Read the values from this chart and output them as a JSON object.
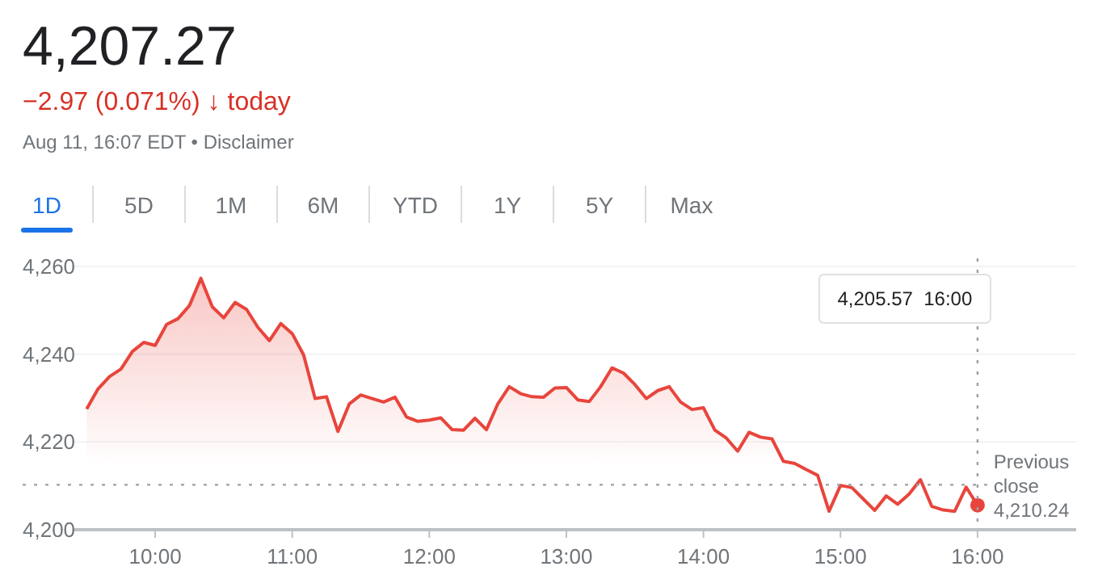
{
  "chart_data": {
    "type": "area",
    "title": "4,207.27",
    "subtitle": "−2.97 (0.071%) ↓ today",
    "annotations": [
      "Aug 11, 16:07 EDT • Disclaimer",
      "1D",
      "5D",
      "1M",
      "6M",
      "YTD",
      "1Y",
      "5Y",
      "Max",
      "4,205.57  16:00"
    ],
    "x": [
      9.5,
      9.5833,
      9.6667,
      9.75,
      9.8333,
      9.9167,
      10,
      10.0833,
      10.1667,
      10.25,
      10.3333,
      10.4167,
      10.5,
      10.5833,
      10.6667,
      10.75,
      10.8333,
      10.9167,
      11,
      11.0833,
      11.1667,
      11.25,
      11.3333,
      11.4167,
      11.5,
      11.5833,
      11.6667,
      11.75,
      11.8333,
      11.9167,
      12,
      12.0833,
      12.1667,
      12.25,
      12.3333,
      12.4167,
      12.5,
      12.5833,
      12.6667,
      12.75,
      12.8333,
      12.9167,
      13,
      13.0833,
      13.1667,
      13.25,
      13.3333,
      13.4167,
      13.5,
      13.5833,
      13.6667,
      13.75,
      13.8333,
      13.9167,
      14,
      14.0833,
      14.1667,
      14.25,
      14.3333,
      14.4167,
      14.5,
      14.5833,
      14.6667,
      14.75,
      14.8333,
      14.9167,
      15,
      15.0833,
      15.1667,
      15.25,
      15.3333,
      15.4167,
      15.5,
      15.5833,
      15.6667,
      15.75,
      15.8333,
      15.9167,
      16
    ],
    "series": [
      {
        "color": "#e8453c",
        "values": [
          4227.5,
          4232.1,
          4234.9,
          4236.6,
          4240.6,
          4242.7,
          4242,
          4246.8,
          4248.1,
          4251.1,
          4257.3,
          4250.8,
          4248.3,
          4251.8,
          4250.2,
          4246.1,
          4243.1,
          4247,
          4244.7,
          4239.8,
          4229.9,
          4230.3,
          4222.4,
          4228.7,
          4230.7,
          4229.9,
          4229.1,
          4230.2,
          4225.7,
          4224.7,
          4225,
          4225.5,
          4222.8,
          4222.7,
          4225.4,
          4222.8,
          4228.7,
          4232.6,
          4231,
          4230.3,
          4230.2,
          4232.3,
          4232.4,
          4229.6,
          4229.2,
          4232.6,
          4236.9,
          4235.7,
          4233.1,
          4229.9,
          4231.7,
          4232.6,
          4229.1,
          4227.4,
          4227.8,
          4222.7,
          4220.9,
          4217.9,
          4222.2,
          4221.1,
          4220.7,
          4215.6,
          4215.1,
          4213.7,
          4212.4,
          4204.2,
          4210.1,
          4209.6,
          4207,
          4204.4,
          4207.7,
          4205.8,
          4208.1,
          4211.4,
          4205.3,
          4204.5,
          4204.2,
          4209.7,
          4205.57
        ]
      },
      {
        "type": "scatter",
        "marker": "circle",
        "color": "#e8453c",
        "x": [
          16
        ],
        "values": [
          4205.57
        ]
      }
    ],
    "xlim": [
      9.41,
      16.72
    ],
    "ylim": [
      4200,
      4260
    ],
    "xticks": [
      {
        "value": 10,
        "label": "10:00"
      },
      {
        "value": 11,
        "label": "11:00"
      },
      {
        "value": 12,
        "label": "12:00"
      },
      {
        "value": 13,
        "label": "13:00"
      },
      {
        "value": 14,
        "label": "14:00"
      },
      {
        "value": 15,
        "label": "15:00"
      },
      {
        "value": 16,
        "label": "16:00"
      }
    ],
    "yticks": [
      {
        "value": 4200,
        "label": "4,200"
      },
      {
        "value": 4220,
        "label": "4,220"
      },
      {
        "value": 4240,
        "label": "4,240"
      },
      {
        "value": 4260,
        "label": "4,260"
      }
    ],
    "ref_lines": [
      {
        "axis": "y",
        "value": 4210.24,
        "label": "Previous close 4,210.24",
        "color": "#9aa0a6",
        "line_style": "dotted"
      },
      {
        "axis": "x",
        "value": 16,
        "color": "#9aa0a6",
        "line_style": "dotted"
      }
    ],
    "grid": "y",
    "marker": "none",
    "line_style": "solid"
  }
}
